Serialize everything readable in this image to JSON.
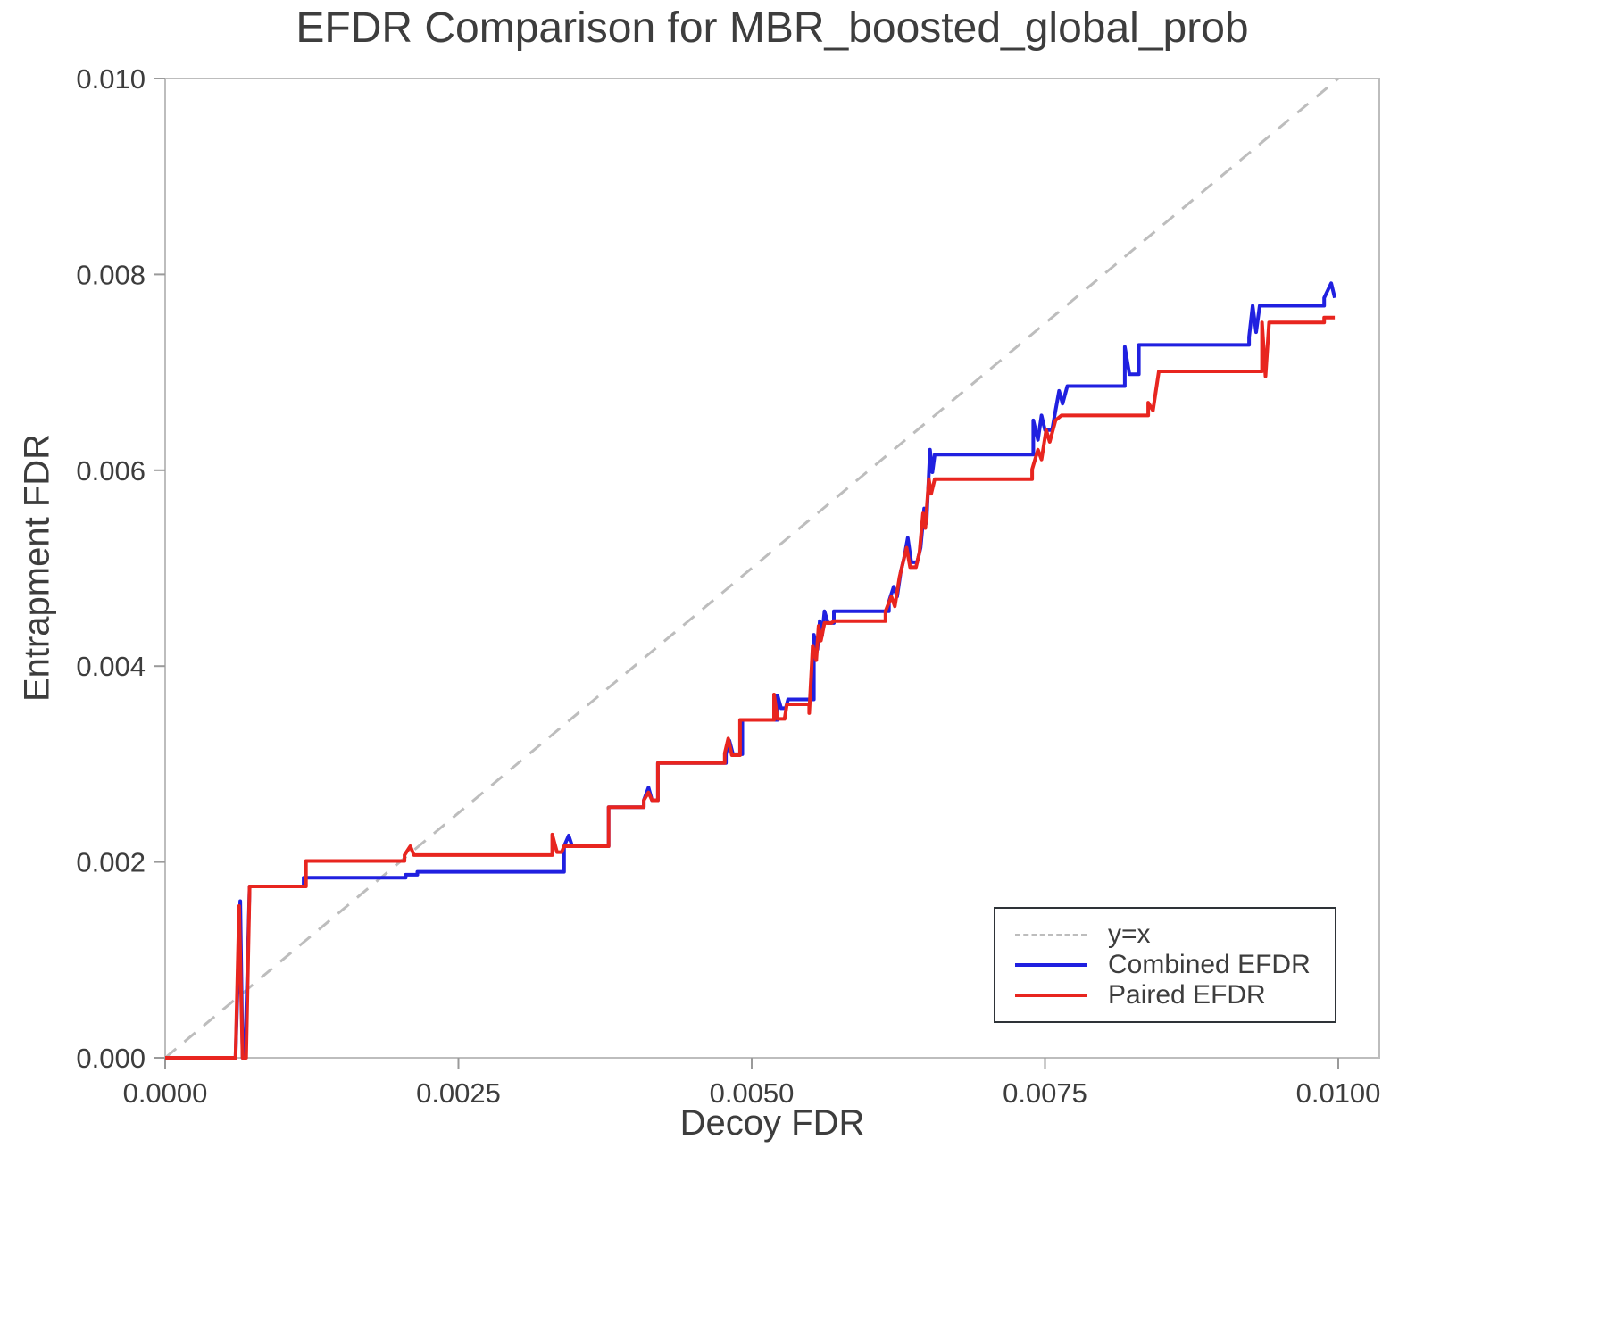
{
  "chart_data": {
    "type": "line",
    "title": "EFDR Comparison for MBR_boosted_global_prob",
    "xlabel": "Decoy FDR",
    "ylabel": "Entrapment FDR",
    "xlim": [
      0,
      0.01035
    ],
    "ylim": [
      0,
      0.01
    ],
    "grid": false,
    "xticks": [
      0.0,
      0.0025,
      0.005,
      0.0075,
      0.01
    ],
    "xtick_labels": [
      "0.0000",
      "0.0025",
      "0.0050",
      "0.0075",
      "0.0100"
    ],
    "yticks": [
      0.0,
      0.002,
      0.004,
      0.006,
      0.008,
      0.01
    ],
    "ytick_labels": [
      "0.000",
      "0.002",
      "0.004",
      "0.006",
      "0.008",
      "0.010"
    ],
    "colors": {
      "axis": "#bdbdbd",
      "tick": "#9a9a9a",
      "text": "#3d3d3d",
      "reference": "#bdbdbd",
      "combined": "#2020e0",
      "paired": "#e8251f"
    },
    "reference_line": {
      "label": "y=x",
      "style": "dashed",
      "color": "#bdbdbd",
      "from": [
        0,
        0
      ],
      "to": [
        0.01,
        0.01
      ]
    },
    "series": [
      {
        "name": "Combined EFDR",
        "color": "#2020e0",
        "points": [
          [
            0.0,
            0.0
          ],
          [
            0.0006,
            0.0
          ],
          [
            0.00064,
            0.0016
          ],
          [
            0.00066,
            0.0
          ],
          [
            0.00068,
            0.0
          ],
          [
            0.00072,
            0.00175
          ],
          [
            0.00118,
            0.00175
          ],
          [
            0.00118,
            0.00184
          ],
          [
            0.00205,
            0.00184
          ],
          [
            0.00205,
            0.00187
          ],
          [
            0.00215,
            0.00187
          ],
          [
            0.00215,
            0.0019
          ],
          [
            0.0034,
            0.0019
          ],
          [
            0.0034,
            0.00216
          ],
          [
            0.00344,
            0.00227
          ],
          [
            0.00347,
            0.00216
          ],
          [
            0.00378,
            0.00216
          ],
          [
            0.00378,
            0.00256
          ],
          [
            0.00408,
            0.00256
          ],
          [
            0.00408,
            0.00263
          ],
          [
            0.00412,
            0.00276
          ],
          [
            0.00415,
            0.00263
          ],
          [
            0.0042,
            0.00263
          ],
          [
            0.0042,
            0.00301
          ],
          [
            0.00478,
            0.00301
          ],
          [
            0.00478,
            0.0031
          ],
          [
            0.00481,
            0.00324
          ],
          [
            0.00484,
            0.0031
          ],
          [
            0.00492,
            0.0031
          ],
          [
            0.00492,
            0.00345
          ],
          [
            0.00522,
            0.00345
          ],
          [
            0.00522,
            0.0037
          ],
          [
            0.00525,
            0.00357
          ],
          [
            0.00529,
            0.00357
          ],
          [
            0.00531,
            0.00366
          ],
          [
            0.00553,
            0.00366
          ],
          [
            0.00553,
            0.00432
          ],
          [
            0.00556,
            0.00417
          ],
          [
            0.00558,
            0.00446
          ],
          [
            0.0056,
            0.00431
          ],
          [
            0.00562,
            0.00456
          ],
          [
            0.00565,
            0.00444
          ],
          [
            0.0057,
            0.00444
          ],
          [
            0.0057,
            0.00456
          ],
          [
            0.00617,
            0.00456
          ],
          [
            0.00617,
            0.00466
          ],
          [
            0.00621,
            0.00481
          ],
          [
            0.00624,
            0.00471
          ],
          [
            0.00627,
            0.00496
          ],
          [
            0.0063,
            0.00511
          ],
          [
            0.00633,
            0.00531
          ],
          [
            0.00636,
            0.00506
          ],
          [
            0.00641,
            0.00506
          ],
          [
            0.00644,
            0.00521
          ],
          [
            0.00647,
            0.00561
          ],
          [
            0.00649,
            0.00546
          ],
          [
            0.00652,
            0.00621
          ],
          [
            0.00654,
            0.00598
          ],
          [
            0.00656,
            0.00616
          ],
          [
            0.0074,
            0.00616
          ],
          [
            0.0074,
            0.00651
          ],
          [
            0.00744,
            0.00631
          ],
          [
            0.00747,
            0.00656
          ],
          [
            0.0075,
            0.00641
          ],
          [
            0.00756,
            0.00641
          ],
          [
            0.00759,
            0.00661
          ],
          [
            0.00762,
            0.00681
          ],
          [
            0.00765,
            0.00668
          ],
          [
            0.00769,
            0.00686
          ],
          [
            0.00818,
            0.00686
          ],
          [
            0.00818,
            0.00726
          ],
          [
            0.00822,
            0.00698
          ],
          [
            0.0083,
            0.00698
          ],
          [
            0.0083,
            0.00728
          ],
          [
            0.00924,
            0.00728
          ],
          [
            0.00924,
            0.00736
          ],
          [
            0.00927,
            0.00768
          ],
          [
            0.0093,
            0.00741
          ],
          [
            0.00933,
            0.00768
          ],
          [
            0.00988,
            0.00768
          ],
          [
            0.00988,
            0.00776
          ],
          [
            0.00994,
            0.00791
          ],
          [
            0.00997,
            0.00776
          ]
        ]
      },
      {
        "name": "Paired EFDR",
        "color": "#e8251f",
        "points": [
          [
            0.0,
            0.0
          ],
          [
            0.0006,
            0.0
          ],
          [
            0.00063,
            0.00155
          ],
          [
            0.00066,
            0.0
          ],
          [
            0.00069,
            0.0
          ],
          [
            0.00072,
            0.00175
          ],
          [
            0.0012,
            0.00175
          ],
          [
            0.0012,
            0.00201
          ],
          [
            0.00204,
            0.00201
          ],
          [
            0.00204,
            0.00207
          ],
          [
            0.00209,
            0.00216
          ],
          [
            0.00212,
            0.00207
          ],
          [
            0.0033,
            0.00207
          ],
          [
            0.0033,
            0.00228
          ],
          [
            0.00334,
            0.0021
          ],
          [
            0.00338,
            0.0021
          ],
          [
            0.0034,
            0.00216
          ],
          [
            0.00378,
            0.00216
          ],
          [
            0.00378,
            0.00256
          ],
          [
            0.00408,
            0.00256
          ],
          [
            0.00408,
            0.00263
          ],
          [
            0.00412,
            0.00271
          ],
          [
            0.00415,
            0.00263
          ],
          [
            0.0042,
            0.00263
          ],
          [
            0.0042,
            0.00301
          ],
          [
            0.00477,
            0.00301
          ],
          [
            0.00477,
            0.00311
          ],
          [
            0.0048,
            0.00326
          ],
          [
            0.00483,
            0.00309
          ],
          [
            0.0049,
            0.00309
          ],
          [
            0.0049,
            0.00345
          ],
          [
            0.00519,
            0.00345
          ],
          [
            0.00519,
            0.00371
          ],
          [
            0.00522,
            0.00346
          ],
          [
            0.00528,
            0.00346
          ],
          [
            0.0053,
            0.00361
          ],
          [
            0.00549,
            0.00361
          ],
          [
            0.00549,
            0.00352
          ],
          [
            0.00552,
            0.00421
          ],
          [
            0.00555,
            0.00406
          ],
          [
            0.00557,
            0.00441
          ],
          [
            0.00559,
            0.00426
          ],
          [
            0.00562,
            0.00444
          ],
          [
            0.00568,
            0.00444
          ],
          [
            0.0057,
            0.00446
          ],
          [
            0.00614,
            0.00446
          ],
          [
            0.00614,
            0.00456
          ],
          [
            0.00619,
            0.00471
          ],
          [
            0.00622,
            0.00461
          ],
          [
            0.00626,
            0.00491
          ],
          [
            0.00629,
            0.00506
          ],
          [
            0.00632,
            0.00521
          ],
          [
            0.00635,
            0.00501
          ],
          [
            0.0064,
            0.00501
          ],
          [
            0.00643,
            0.00516
          ],
          [
            0.00646,
            0.00556
          ],
          [
            0.00648,
            0.00541
          ],
          [
            0.00651,
            0.00591
          ],
          [
            0.00653,
            0.00576
          ],
          [
            0.00656,
            0.00591
          ],
          [
            0.00739,
            0.00591
          ],
          [
            0.00739,
            0.00601
          ],
          [
            0.00744,
            0.00621
          ],
          [
            0.00747,
            0.00611
          ],
          [
            0.00751,
            0.00641
          ],
          [
            0.00754,
            0.00629
          ],
          [
            0.00759,
            0.00651
          ],
          [
            0.00764,
            0.00656
          ],
          [
            0.00838,
            0.00656
          ],
          [
            0.00838,
            0.00669
          ],
          [
            0.00842,
            0.00661
          ],
          [
            0.00847,
            0.00701
          ],
          [
            0.00935,
            0.00701
          ],
          [
            0.00935,
            0.00751
          ],
          [
            0.00938,
            0.00696
          ],
          [
            0.00941,
            0.00751
          ],
          [
            0.00988,
            0.00751
          ],
          [
            0.00988,
            0.00756
          ],
          [
            0.00997,
            0.00756
          ]
        ]
      }
    ],
    "legend": {
      "position": "lower right",
      "entries": [
        {
          "label": "y=x",
          "style": "dashed",
          "color": "#bdbdbd"
        },
        {
          "label": "Combined EFDR",
          "style": "solid",
          "color": "#2020e0"
        },
        {
          "label": "Paired EFDR",
          "style": "solid",
          "color": "#e8251f"
        }
      ]
    }
  }
}
